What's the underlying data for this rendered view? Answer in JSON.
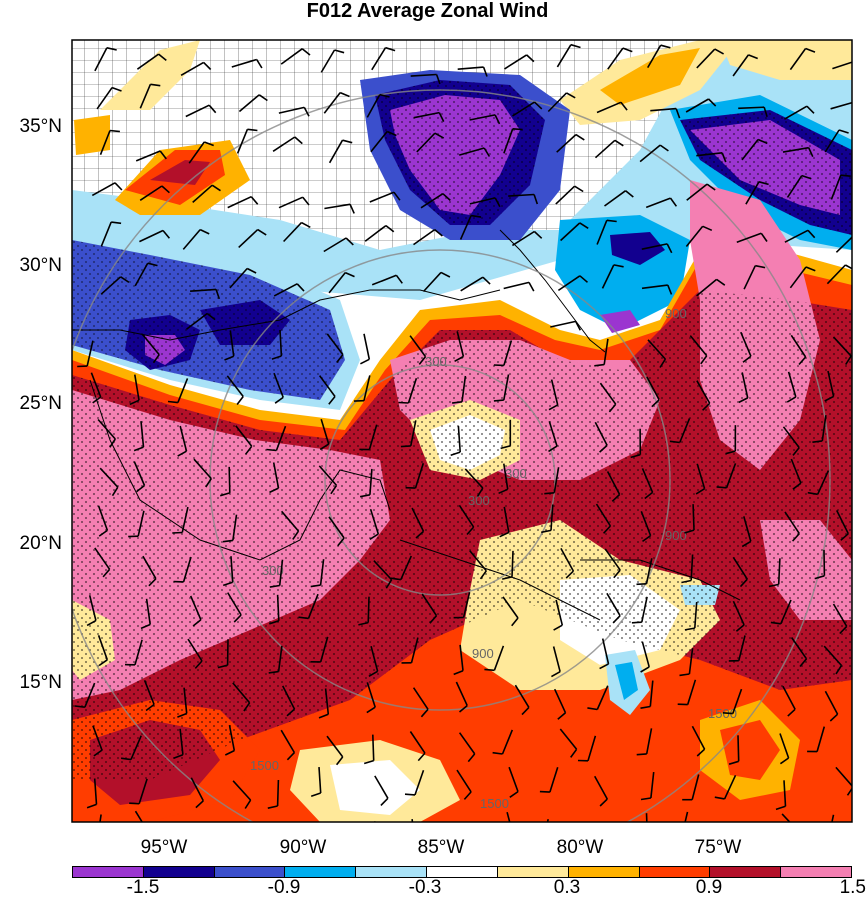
{
  "title": "F012 Average Zonal Wind",
  "lat_labels": [
    "35°N",
    "30°N",
    "25°N",
    "20°N",
    "15°N"
  ],
  "lon_labels": [
    "95°W",
    "90°W",
    "85°W",
    "80°W",
    "75°W"
  ],
  "colorbar": {
    "labels": [
      "-1.5",
      "-0.9",
      "-0.3",
      "0.3",
      "0.9",
      "1.5"
    ],
    "colors": [
      "#9b35d0",
      "#12008f",
      "#3b4fcc",
      "#00aeef",
      "#a9e2f7",
      "#ffffff",
      "#ffe99a",
      "#ffb200",
      "#ff3d00",
      "#b3102a",
      "#f47fb2"
    ]
  },
  "range_ring_labels": [
    "300",
    "300",
    "300",
    "300",
    "900",
    "900",
    "900",
    "1500",
    "1500",
    "1500"
  ],
  "chart_data": {
    "type": "heatmap",
    "title": "F012 Average Zonal Wind",
    "xlabel": "",
    "ylabel": "",
    "x_ticks": [
      "95°W",
      "90°W",
      "85°W",
      "80°W",
      "75°W"
    ],
    "y_ticks": [
      "35°N",
      "30°N",
      "25°N",
      "20°N",
      "15°N"
    ],
    "lon_range": [
      -98,
      -69.5
    ],
    "lat_range": [
      10,
      38
    ],
    "levels": [
      -1.5,
      -1.2,
      -0.9,
      -0.6,
      -0.3,
      0.3,
      0.6,
      0.9,
      1.2,
      1.5
    ],
    "colors": [
      "#9b35d0",
      "#12008f",
      "#3b4fcc",
      "#00aeef",
      "#a9e2f7",
      "#ffffff",
      "#ffe99a",
      "#ffb200",
      "#ff3d00",
      "#b3102a",
      "#f47fb2"
    ],
    "features": [
      "wind barbs",
      "stippling over |value| >= 0.9",
      "range rings at 300/900/1500",
      "US county boundaries"
    ],
    "legend_position": "bottom"
  }
}
